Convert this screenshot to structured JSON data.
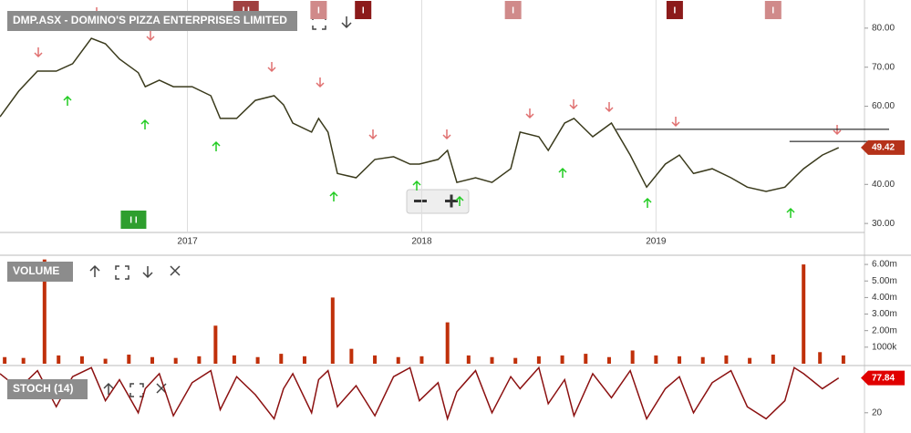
{
  "chart_data": [
    {
      "type": "line",
      "title": "DMP.ASX - DOMINO'S PIZZA ENTERPRISES LIMITED",
      "x": [
        2016.2,
        2016.28,
        2016.36,
        2016.44,
        2016.51,
        2016.59,
        2016.65,
        2016.71,
        2016.79,
        2016.82,
        2016.88,
        2016.94,
        2017.02,
        2017.1,
        2017.14,
        2017.21,
        2017.29,
        2017.37,
        2017.41,
        2017.45,
        2017.53,
        2017.56,
        2017.6,
        2017.64,
        2017.72,
        2017.8,
        2017.88,
        2017.95,
        2017.99,
        2018.07,
        2018.11,
        2018.15,
        2018.23,
        2018.3,
        2018.38,
        2018.42,
        2018.5,
        2018.54,
        2018.61,
        2018.65,
        2018.73,
        2018.81,
        2018.89,
        2018.96,
        2019.04,
        2019.1,
        2019.16,
        2019.24,
        2019.32,
        2019.39,
        2019.47,
        2019.55,
        2019.59,
        2019.63,
        2019.71,
        2019.78
      ],
      "series": [
        {
          "color": "#3a3a1c",
          "values": [
            57.3,
            63.9,
            69.0,
            69.0,
            70.9,
            77.4,
            76.0,
            72.1,
            68.6,
            65.0,
            66.7,
            65.0,
            65.0,
            62.7,
            56.9,
            56.9,
            61.5,
            62.7,
            60.4,
            55.7,
            53.4,
            56.9,
            53.4,
            42.8,
            41.7,
            46.4,
            47.1,
            45.2,
            45.2,
            46.4,
            48.7,
            40.5,
            41.7,
            40.5,
            44.0,
            53.4,
            52.2,
            48.7,
            55.7,
            56.9,
            52.2,
            55.7,
            47.5,
            39.3,
            45.2,
            47.5,
            42.8,
            44.0,
            41.7,
            39.3,
            38.2,
            39.3,
            41.7,
            44.0,
            47.5,
            49.42
          ]
        }
      ],
      "xlim": [
        2016.2,
        2019.89
      ],
      "xticks": [
        2017,
        2018,
        2019
      ],
      "ylim": [
        27.7,
        87.2
      ],
      "yticks": [
        {
          "value": 30,
          "label": "30.00"
        },
        {
          "value": 40,
          "label": "40.00"
        },
        {
          "value": 50,
          "label": "50.00"
        },
        {
          "value": 60,
          "label": "60.00"
        },
        {
          "value": 70,
          "label": "70.00"
        },
        {
          "value": 80,
          "label": "80.00"
        }
      ],
      "hlines": [
        {
          "value": 54.1,
          "from": 2018.83
        },
        {
          "value": 51.0,
          "from": 2019.57
        }
      ],
      "events": [
        {
          "x": 2016.77,
          "label": "I I",
          "color": "#2e9e2e"
        },
        {
          "x": 2017.25,
          "label": "I I",
          "color": "#a04040"
        },
        {
          "x": 2017.56,
          "label": "I",
          "color": "#d08a8a"
        },
        {
          "x": 2017.75,
          "label": "I",
          "color": "#8b1a1a"
        },
        {
          "x": 2018.39,
          "label": "I",
          "color": "#d08a8a"
        },
        {
          "x": 2019.08,
          "label": "I",
          "color": "#8b1a1a"
        },
        {
          "x": 2019.5,
          "label": "I",
          "color": "#d08a8a"
        }
      ],
      "grid": true
    },
    {
      "type": "bar",
      "title": "VOLUME",
      "x": [
        2016.22,
        2016.3,
        2016.39,
        2016.45,
        2016.55,
        2016.65,
        2016.75,
        2016.85,
        2016.95,
        2017.05,
        2017.12,
        2017.2,
        2017.3,
        2017.4,
        2017.5,
        2017.62,
        2017.7,
        2017.8,
        2017.9,
        2018.0,
        2018.11,
        2018.2,
        2018.3,
        2018.4,
        2018.5,
        2018.6,
        2018.7,
        2018.8,
        2018.9,
        2019.0,
        2019.1,
        2019.2,
        2019.3,
        2019.4,
        2019.5,
        2019.63,
        2019.7,
        2019.8
      ],
      "values": [
        400000,
        350000,
        6300000,
        500000,
        450000,
        300000,
        550000,
        400000,
        350000,
        450000,
        2300000,
        500000,
        400000,
        600000,
        450000,
        4000000,
        900000,
        500000,
        400000,
        450000,
        2500000,
        500000,
        400000,
        350000,
        450000,
        500000,
        600000,
        400000,
        800000,
        500000,
        450000,
        400000,
        500000,
        350000,
        550000,
        6000000,
        700000,
        500000
      ],
      "color": "#c0300a",
      "xlim": [
        2016.2,
        2019.89
      ],
      "ylim": [
        0,
        6390000
      ],
      "yticks": [
        {
          "value": 1000000,
          "label": "1000k"
        },
        {
          "value": 2000000,
          "label": "2.00m"
        },
        {
          "value": 3000000,
          "label": "3.00m"
        },
        {
          "value": 4000000,
          "label": "4.00m"
        },
        {
          "value": 5000000,
          "label": "5.00m"
        },
        {
          "value": 6000000,
          "label": "6.00m"
        }
      ]
    },
    {
      "type": "line",
      "title": "STOCH (14)",
      "x": [
        2016.2,
        2016.28,
        2016.36,
        2016.44,
        2016.51,
        2016.59,
        2016.65,
        2016.71,
        2016.79,
        2016.82,
        2016.88,
        2016.94,
        2017.02,
        2017.1,
        2017.14,
        2017.21,
        2017.29,
        2017.37,
        2017.41,
        2017.45,
        2017.53,
        2017.56,
        2017.6,
        2017.64,
        2017.72,
        2017.8,
        2017.88,
        2017.95,
        2017.99,
        2018.07,
        2018.11,
        2018.15,
        2018.23,
        2018.3,
        2018.38,
        2018.42,
        2018.5,
        2018.54,
        2018.61,
        2018.65,
        2018.73,
        2018.81,
        2018.89,
        2018.96,
        2019.04,
        2019.1,
        2019.16,
        2019.24,
        2019.32,
        2019.39,
        2019.47,
        2019.55,
        2019.59,
        2019.63,
        2019.71,
        2019.78
      ],
      "series": [
        {
          "color": "#8b1010",
          "values": [
            85,
            60,
            90,
            30,
            80,
            95,
            40,
            75,
            20,
            60,
            85,
            15,
            70,
            90,
            25,
            80,
            50,
            10,
            60,
            85,
            20,
            75,
            90,
            30,
            65,
            15,
            80,
            95,
            40,
            70,
            10,
            55,
            90,
            20,
            80,
            60,
            95,
            35,
            75,
            15,
            85,
            45,
            90,
            10,
            60,
            80,
            20,
            70,
            90,
            30,
            10,
            40,
            95,
            85,
            60,
            77.84
          ]
        }
      ],
      "xlim": [
        2016.2,
        2019.89
      ],
      "ylim": [
        0,
        100
      ],
      "yticks": [
        20
      ]
    }
  ]
}
